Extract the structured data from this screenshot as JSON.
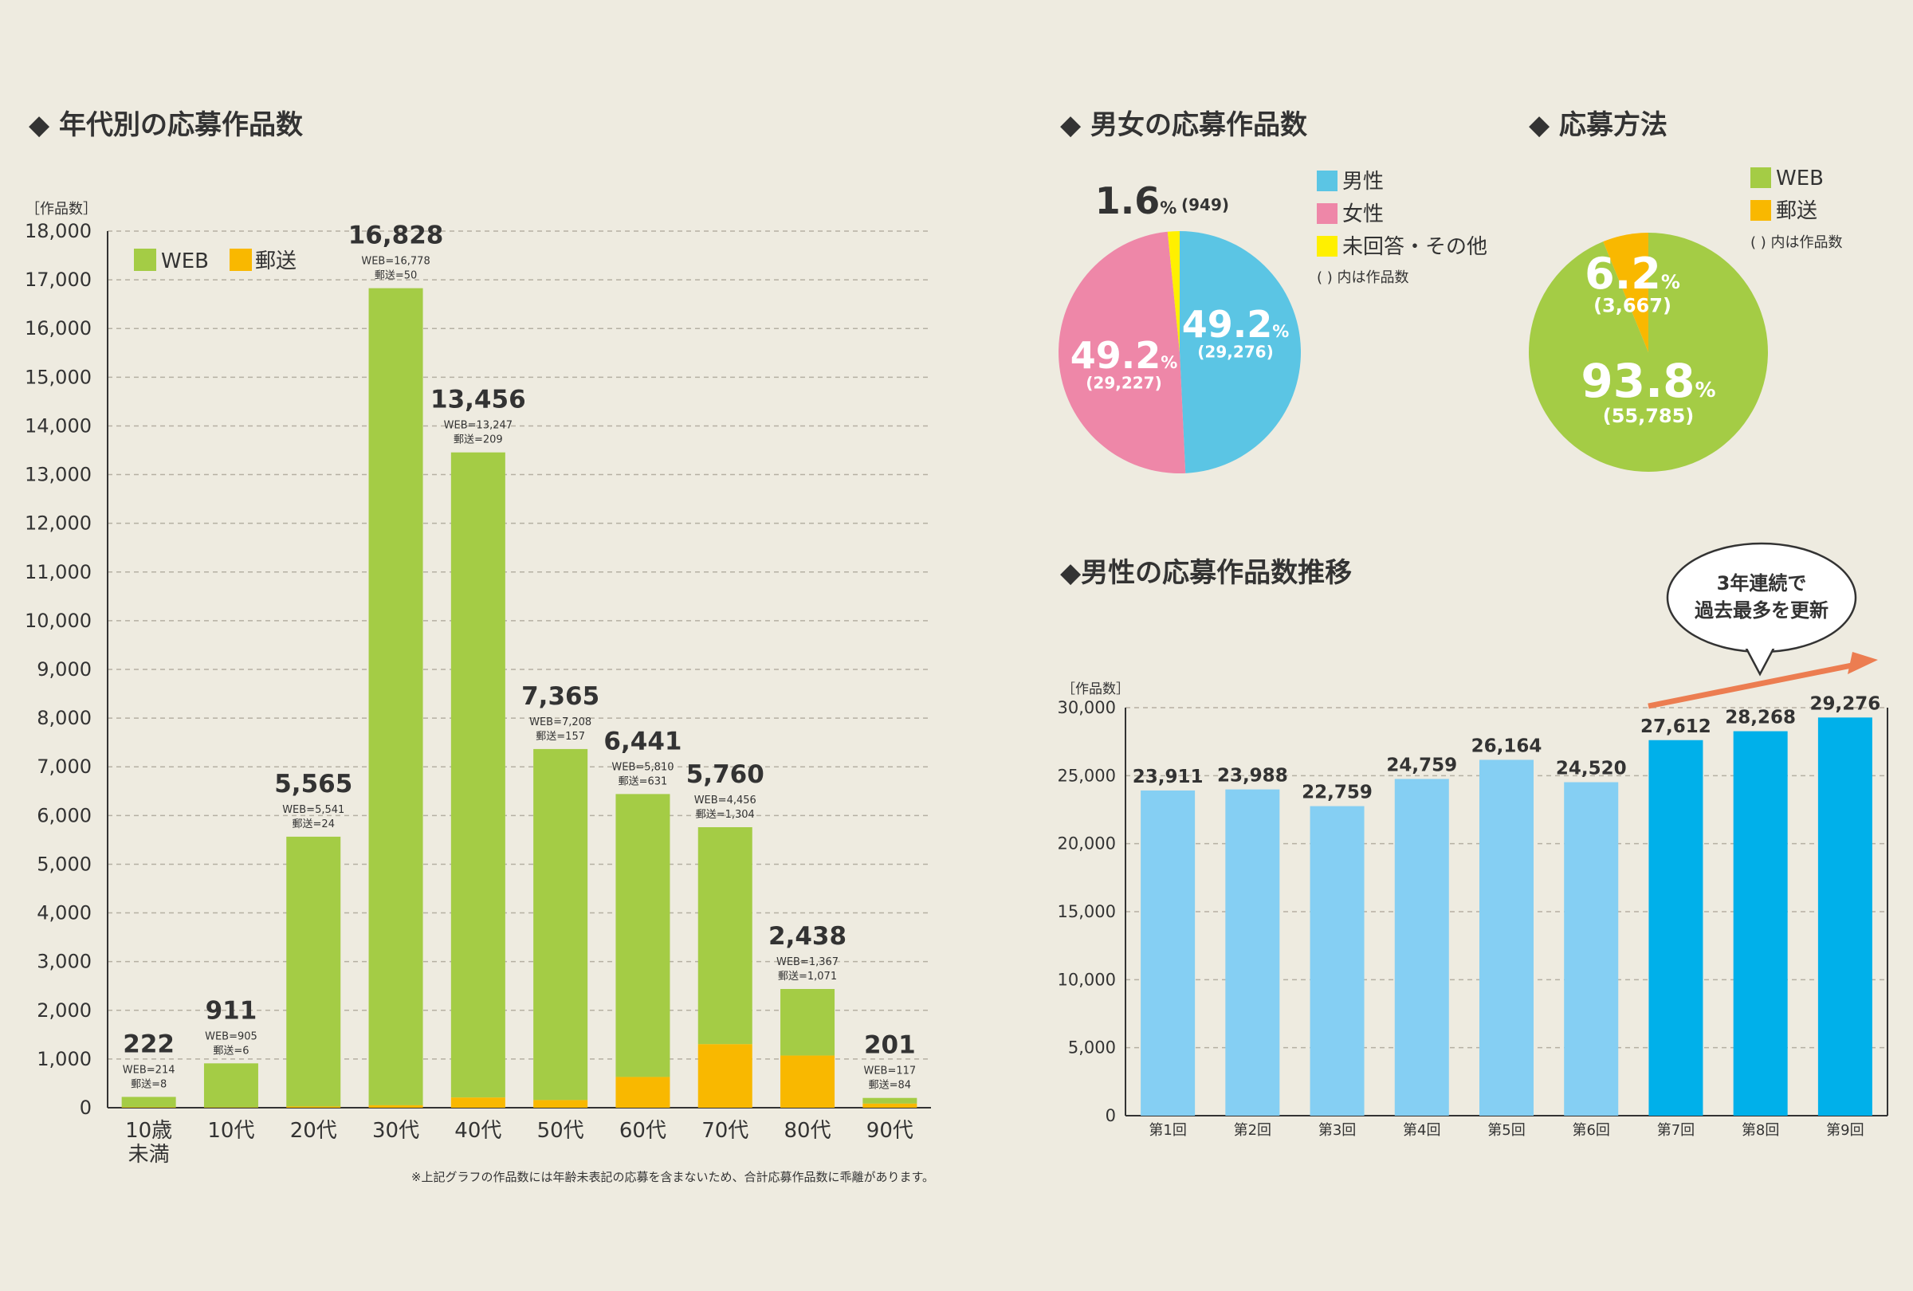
{
  "section_titles": {
    "age": "◆ 年代別の応募作品数",
    "gender": "◆ 男女の応募作品数",
    "method": "◆ 応募方法",
    "trend": "◆男性の応募作品数推移"
  },
  "age_chart": {
    "unit_label": "［作品数］",
    "legend": {
      "web": "WEB",
      "mail": "郵送"
    },
    "footnote": "※上記グラフの作品数には年齢未表記の応募を含まないため、合計応募作品数に乖離があります。"
  },
  "gender_chart": {
    "legend": [
      "男性",
      "女性",
      "未回答・その他"
    ],
    "note": "( ) 内は作品数"
  },
  "method_chart": {
    "legend": [
      "WEB",
      "郵送"
    ],
    "note": "( ) 内は作品数"
  },
  "trend_chart": {
    "unit_label": "［作品数］",
    "callout": [
      "3年連続で",
      "過去最多を更新"
    ]
  },
  "colors": {
    "web": "#a4cc45",
    "mail": "#f9b800",
    "male": "#5bc5e4",
    "female": "#ee87a8",
    "other": "#fff000",
    "bar_light": "#85cff3",
    "bar_dark": "#00b0ea",
    "arrow": "#ec7d51"
  },
  "chart_data": [
    {
      "type": "bar",
      "title": "年代別の応募作品数",
      "ylabel": "［作品数］",
      "ylim": [
        0,
        18000
      ],
      "yticks": [
        "0",
        "1,000",
        "2,000",
        "3,000",
        "4,000",
        "5,000",
        "6,000",
        "7,000",
        "8,000",
        "9,000",
        "10,000",
        "11,000",
        "12,000",
        "13,000",
        "14,000",
        "15,000",
        "16,000",
        "17,000",
        "18,000"
      ],
      "categories": [
        "10歳\n未満",
        "10代",
        "20代",
        "30代",
        "40代",
        "50代",
        "60代",
        "70代",
        "80代",
        "90代"
      ],
      "totals": [
        222,
        911,
        5565,
        16828,
        13456,
        7365,
        6441,
        5760,
        2438,
        201
      ],
      "total_labels": [
        "222",
        "911",
        "5,565",
        "16,828",
        "13,456",
        "7,365",
        "6,441",
        "5,760",
        "2,438",
        "201"
      ],
      "stacked": true,
      "grid": true,
      "legend_position": "top-left",
      "series": [
        {
          "name": "WEB",
          "values": [
            214,
            905,
            5541,
            16778,
            13247,
            7208,
            5810,
            4456,
            1367,
            117
          ],
          "labels": [
            "WEB=214",
            "WEB=905",
            "WEB=5,541",
            "WEB=16,778",
            "WEB=13,247",
            "WEB=7,208",
            "WEB=5,810",
            "WEB=4,456",
            "WEB=1,367",
            "WEB=117"
          ]
        },
        {
          "name": "郵送",
          "values": [
            8,
            6,
            24,
            50,
            209,
            157,
            631,
            1304,
            1071,
            84
          ],
          "labels": [
            "郵送=8",
            "郵送=6",
            "郵送=24",
            "郵送=50",
            "郵送=209",
            "郵送=157",
            "郵送=631",
            "郵送=1,304",
            "郵送=1,071",
            "郵送=84"
          ]
        }
      ]
    },
    {
      "type": "pie",
      "title": "男女の応募作品数",
      "categories": [
        "男性",
        "女性",
        "未回答・その他"
      ],
      "values": [
        29276,
        29227,
        949
      ],
      "percent_labels": [
        "49.2",
        "49.2",
        "1.6"
      ],
      "count_labels": [
        "(29,276)",
        "(29,227)",
        "(949)"
      ],
      "pct_sign": "%"
    },
    {
      "type": "pie",
      "title": "応募方法",
      "categories": [
        "WEB",
        "郵送"
      ],
      "values": [
        55785,
        3667
      ],
      "percent_labels": [
        "93.8",
        "6.2"
      ],
      "count_labels": [
        "(55,785)",
        "(3,667)"
      ],
      "pct_sign": "%"
    },
    {
      "type": "bar",
      "title": "男性の応募作品数推移",
      "ylabel": "［作品数］",
      "ylim": [
        0,
        30000
      ],
      "yticks": [
        "0",
        "5,000",
        "10,000",
        "15,000",
        "20,000",
        "25,000",
        "30,000"
      ],
      "categories": [
        "第1回",
        "第2回",
        "第3回",
        "第4回",
        "第5回",
        "第6回",
        "第7回",
        "第8回",
        "第9回"
      ],
      "values": [
        23911,
        23988,
        22759,
        24759,
        26164,
        24520,
        27612,
        28268,
        29276
      ],
      "value_labels": [
        "23,911",
        "23,988",
        "22,759",
        "24,759",
        "26,164",
        "24,520",
        "27,612",
        "28,268",
        "29,276"
      ],
      "highlight_from_index": 6
    }
  ]
}
